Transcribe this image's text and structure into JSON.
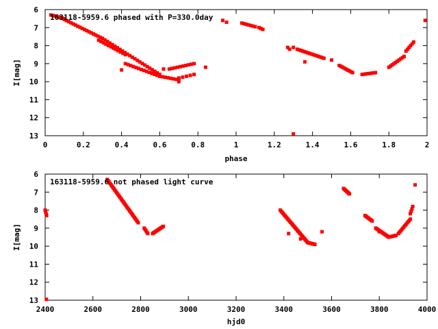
{
  "chart_data": [
    {
      "type": "scatter",
      "title": "163118-5959.6 phased with P=330.0day",
      "xlabel": "phase",
      "ylabel": "I[mag]",
      "xlim": [
        0,
        2
      ],
      "ylim": [
        6,
        13
      ],
      "y_inverted": true,
      "xticks": [
        0,
        0.2,
        0.4,
        0.6,
        0.8,
        1,
        1.2,
        1.4,
        1.6,
        1.8,
        2
      ],
      "xtick_labels": [
        "0",
        "0.2",
        "0.4",
        "0.6",
        "0.8",
        "1",
        "1.2",
        "1.4",
        "1.6",
        "1.8",
        "2"
      ],
      "yticks": [
        6,
        7,
        8,
        9,
        10,
        11,
        12,
        13
      ],
      "ytick_labels": [
        "6",
        "7",
        "8",
        "9",
        "10",
        "11",
        "12",
        "13"
      ],
      "marker_color": "#ff0000",
      "grid": false,
      "segments": [
        {
          "x0": 0.03,
          "x1": 0.1,
          "y0": 6.3,
          "y1": 6.5,
          "n": 8
        },
        {
          "x0": 0.1,
          "x1": 0.3,
          "y0": 6.55,
          "y1": 7.6,
          "n": 18
        },
        {
          "x0": 0.3,
          "x1": 0.6,
          "y0": 7.6,
          "y1": 9.6,
          "n": 24
        },
        {
          "x0": 0.28,
          "x1": 0.42,
          "y0": 7.7,
          "y1": 8.5,
          "n": 12
        },
        {
          "x0": 0.42,
          "x1": 0.6,
          "y0": 9.0,
          "y1": 9.7,
          "n": 14
        },
        {
          "x0": 0.6,
          "x1": 0.7,
          "y0": 9.7,
          "y1": 9.9,
          "n": 8
        },
        {
          "x0": 0.65,
          "x1": 0.78,
          "y0": 9.3,
          "y1": 9.0,
          "n": 10
        },
        {
          "x0": 0.7,
          "x1": 0.78,
          "y0": 9.8,
          "y1": 9.6,
          "n": 5
        },
        {
          "x0": 0.93,
          "x1": 0.95,
          "y0": 6.6,
          "y1": 6.7,
          "n": 2
        },
        {
          "x0": 1.03,
          "x1": 1.1,
          "y0": 6.75,
          "y1": 6.95,
          "n": 7
        },
        {
          "x0": 1.12,
          "x1": 1.14,
          "y0": 7.0,
          "y1": 7.1,
          "n": 3
        },
        {
          "x0": 1.27,
          "x1": 1.28,
          "y0": 8.1,
          "y1": 8.2,
          "n": 2
        },
        {
          "x0": 1.32,
          "x1": 1.46,
          "y0": 8.2,
          "y1": 8.7,
          "n": 16
        },
        {
          "x0": 1.54,
          "x1": 1.61,
          "y0": 9.1,
          "y1": 9.5,
          "n": 10
        },
        {
          "x0": 1.66,
          "x1": 1.73,
          "y0": 9.6,
          "y1": 9.5,
          "n": 9
        },
        {
          "x0": 1.8,
          "x1": 1.88,
          "y0": 9.2,
          "y1": 8.6,
          "n": 10
        },
        {
          "x0": 1.89,
          "x1": 1.93,
          "y0": 8.3,
          "y1": 7.8,
          "n": 6
        }
      ],
      "points": [
        {
          "x": 0.4,
          "y": 9.35
        },
        {
          "x": 0.62,
          "y": 9.3
        },
        {
          "x": 0.7,
          "y": 10.0
        },
        {
          "x": 0.84,
          "y": 9.2
        },
        {
          "x": 1.3,
          "y": 12.9
        },
        {
          "x": 1.36,
          "y": 8.9
        },
        {
          "x": 1.99,
          "y": 6.6
        },
        {
          "x": 1.3,
          "y": 8.1
        },
        {
          "x": 1.5,
          "y": 8.8
        }
      ]
    },
    {
      "type": "scatter",
      "title": "163118-5959.6 not phased light curve",
      "xlabel": "hjd0",
      "ylabel": "I[mag]",
      "xlim": [
        2400,
        4000
      ],
      "ylim": [
        6,
        13
      ],
      "y_inverted": true,
      "xticks": [
        2400,
        2600,
        2800,
        3000,
        3200,
        3400,
        3600,
        3800,
        4000
      ],
      "xtick_labels": [
        "2400",
        "2600",
        "2800",
        "3000",
        "3200",
        "3400",
        "3600",
        "3800",
        "4000"
      ],
      "yticks": [
        6,
        7,
        8,
        9,
        10,
        11,
        12,
        13
      ],
      "ytick_labels": [
        "6",
        "7",
        "8",
        "9",
        "10",
        "11",
        "12",
        "13"
      ],
      "marker_color": "#ff0000",
      "grid": false,
      "segments": [
        {
          "x0": 2400,
          "x1": 2406,
          "y0": 8.0,
          "y1": 8.3,
          "n": 4
        },
        {
          "x0": 2660,
          "x1": 2790,
          "y0": 6.3,
          "y1": 8.7,
          "n": 34
        },
        {
          "x0": 2815,
          "x1": 2830,
          "y0": 9.0,
          "y1": 9.3,
          "n": 5
        },
        {
          "x0": 2850,
          "x1": 2895,
          "y0": 9.3,
          "y1": 8.9,
          "n": 12
        },
        {
          "x0": 3385,
          "x1": 3500,
          "y0": 8.0,
          "y1": 9.8,
          "n": 30
        },
        {
          "x0": 3500,
          "x1": 3530,
          "y0": 9.8,
          "y1": 9.9,
          "n": 8
        },
        {
          "x0": 3650,
          "x1": 3675,
          "y0": 6.8,
          "y1": 7.1,
          "n": 8
        },
        {
          "x0": 3740,
          "x1": 3770,
          "y0": 8.3,
          "y1": 8.6,
          "n": 8
        },
        {
          "x0": 3785,
          "x1": 3840,
          "y0": 9.0,
          "y1": 9.5,
          "n": 14
        },
        {
          "x0": 3840,
          "x1": 3870,
          "y0": 9.5,
          "y1": 9.4,
          "n": 7
        },
        {
          "x0": 3880,
          "x1": 3930,
          "y0": 9.3,
          "y1": 8.5,
          "n": 12
        },
        {
          "x0": 3930,
          "x1": 3940,
          "y0": 8.2,
          "y1": 7.8,
          "n": 4
        }
      ],
      "points": [
        {
          "x": 2405,
          "y": 12.95
        },
        {
          "x": 3420,
          "y": 9.3
        },
        {
          "x": 3560,
          "y": 9.2
        },
        {
          "x": 3950,
          "y": 6.6
        },
        {
          "x": 3470,
          "y": 9.6
        },
        {
          "x": 3800,
          "y": 9.2
        }
      ]
    }
  ]
}
